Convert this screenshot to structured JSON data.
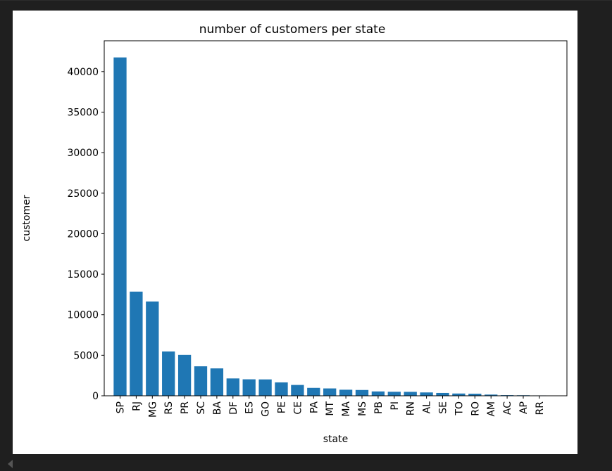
{
  "chart_data": {
    "type": "bar",
    "title": "number of customers per state",
    "xlabel": "state",
    "ylabel": "customer",
    "categories": [
      "SP",
      "RJ",
      "MG",
      "RS",
      "PR",
      "SC",
      "BA",
      "DF",
      "ES",
      "GO",
      "PE",
      "CE",
      "PA",
      "MT",
      "MA",
      "MS",
      "PB",
      "PI",
      "RN",
      "AL",
      "SE",
      "TO",
      "RO",
      "AM",
      "AC",
      "AP",
      "RR"
    ],
    "values": [
      41746,
      12852,
      11635,
      5466,
      5045,
      3637,
      3380,
      2140,
      2033,
      2020,
      1652,
      1336,
      975,
      907,
      747,
      715,
      536,
      495,
      485,
      413,
      350,
      280,
      253,
      148,
      81,
      68,
      46
    ],
    "yticks": [
      0,
      5000,
      10000,
      15000,
      20000,
      25000,
      30000,
      35000,
      40000
    ],
    "ylim": [
      0,
      43800
    ],
    "bar_color": "#1f77b4",
    "grid": false
  }
}
